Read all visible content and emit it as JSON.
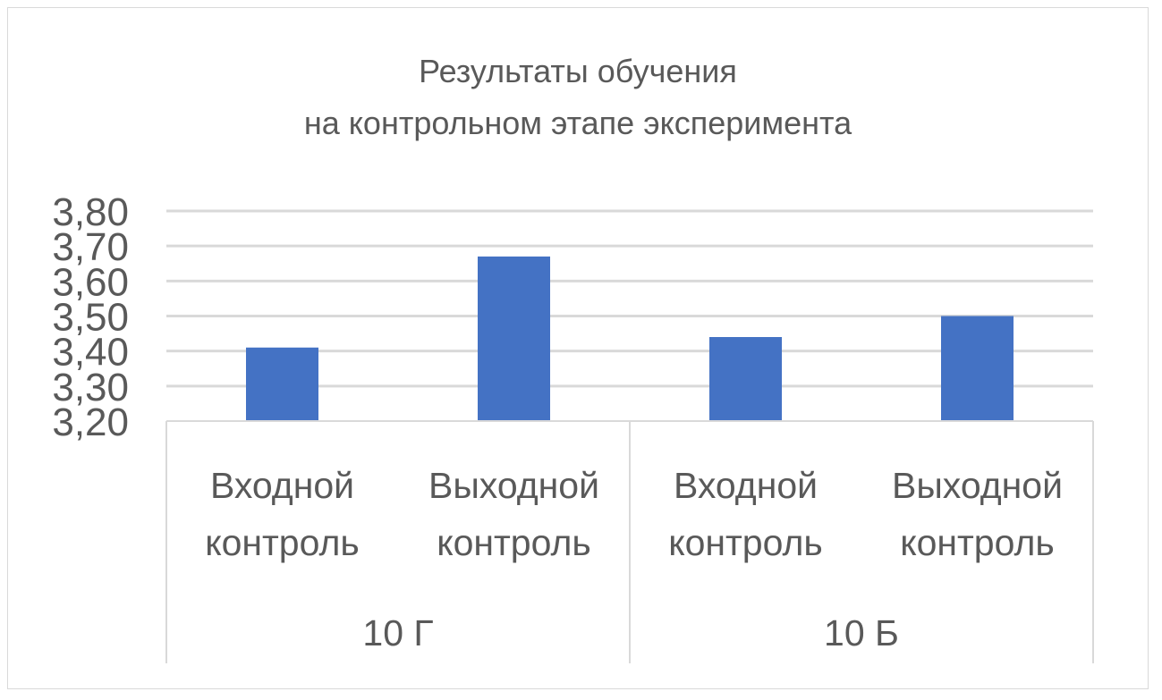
{
  "chart_data": {
    "type": "bar",
    "title_lines": [
      "Результаты обучения",
      "на контрольном этапе эксперимента"
    ],
    "groups": [
      {
        "label": "10 Г",
        "categories": [
          [
            "Входной",
            "контроль"
          ],
          [
            "Выходной",
            "контроль"
          ]
        ]
      },
      {
        "label": "10 Б",
        "categories": [
          [
            "Входной",
            "контроль"
          ],
          [
            "Выходной",
            "контроль"
          ]
        ]
      }
    ],
    "values": [
      3.41,
      3.67,
      3.44,
      3.5
    ],
    "ylim": [
      3.2,
      3.8
    ],
    "yticks": [
      "3,20",
      "3,30",
      "3,40",
      "3,50",
      "3,60",
      "3,70",
      "3,80"
    ],
    "grid": true,
    "legend": "none",
    "bar_color": "#4472C4"
  }
}
